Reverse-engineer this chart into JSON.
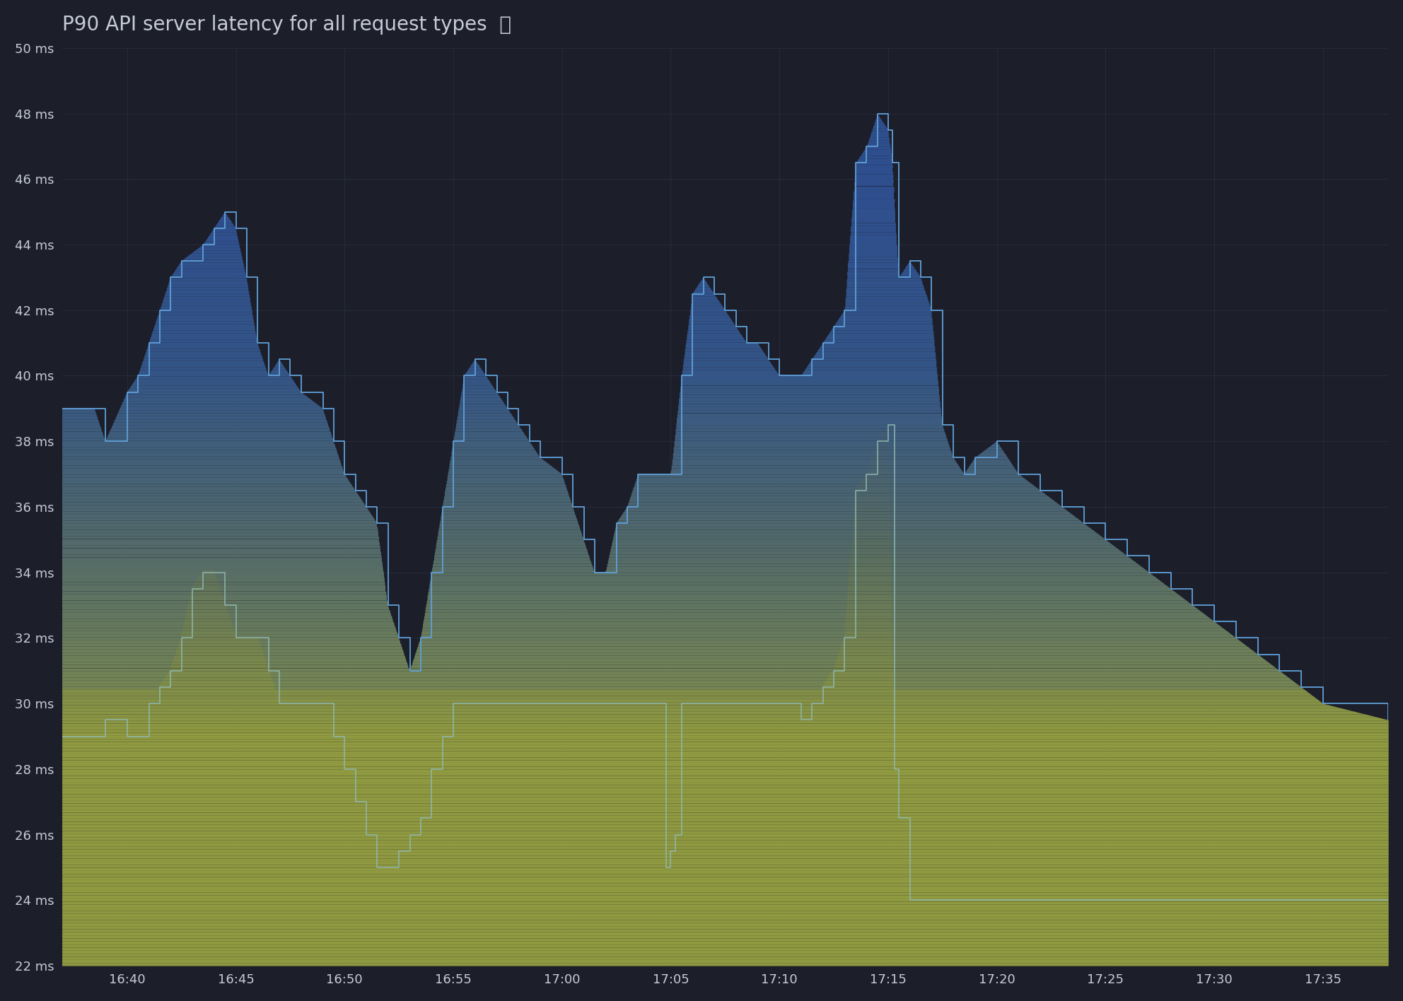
{
  "title": "P90 API server latency for all request types",
  "info_icon": "ⓘ",
  "bg_color": "#1c1e2a",
  "plot_bg_color": "#1c1e2a",
  "grid_color": "#2d3040",
  "text_color": "#c8ccd8",
  "ylim": [
    22,
    50
  ],
  "yticks": [
    22,
    24,
    26,
    28,
    30,
    32,
    34,
    36,
    38,
    40,
    42,
    44,
    46,
    48,
    50
  ],
  "xtick_minutes_from_start": [
    3,
    8,
    13,
    18,
    23,
    28,
    33,
    38,
    43,
    48,
    53,
    58
  ],
  "xlabel_times": [
    "16:40",
    "16:45",
    "16:50",
    "16:55",
    "17:00",
    "17:05",
    "17:10",
    "17:15",
    "17:20",
    "17:25",
    "17:30",
    "17:35"
  ],
  "total_minutes": 61,
  "upper_color_top": "#3a6aaa",
  "upper_color_line": "#5090cc",
  "lower_color_line": "#90b8b8",
  "gradient_bottom_color": "#909840",
  "gradient_mid_color": "#506878",
  "gradient_top_color": "#2a4a80"
}
